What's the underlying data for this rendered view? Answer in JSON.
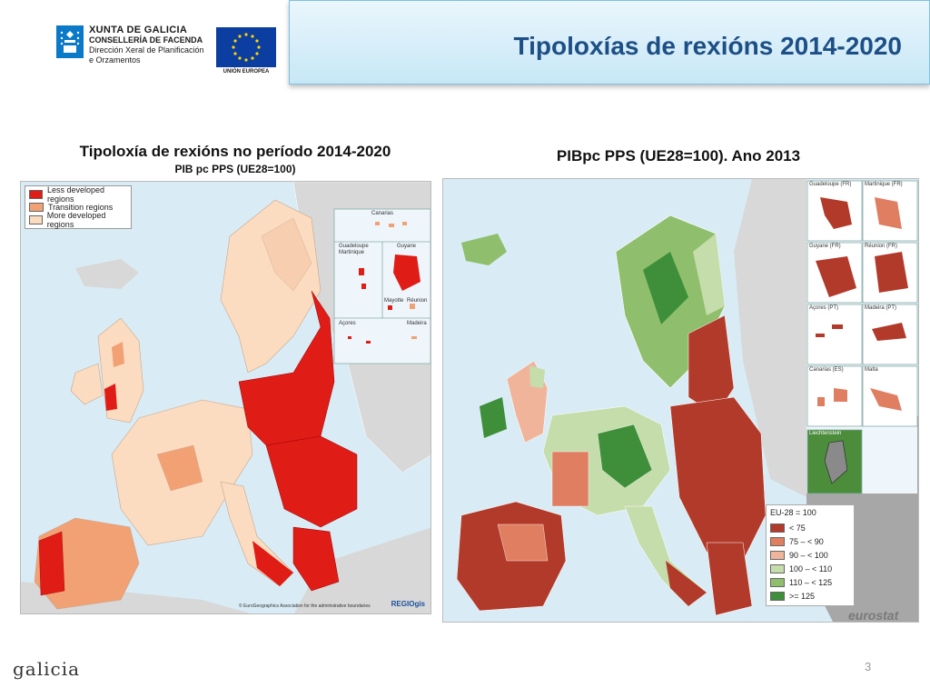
{
  "header": {
    "xunta_line1": "XUNTA DE GALICIA",
    "xunta_line2": "CONSELLERÍA DE FACENDA",
    "xunta_line3": "Dirección Xeral de Planificación",
    "xunta_line4": "e Orzamentos",
    "eu_label": "UNIÓN EUROPEA",
    "title": "Tipoloxías de rexións 2014-2020"
  },
  "left_map": {
    "caption_line1": "Tipoloxía de rexións no período 2014-2020",
    "caption_line2": "PIB pc PPS (UE28=100)",
    "legend": [
      {
        "label": "Less developed regions",
        "color": "#e01c17"
      },
      {
        "label": "Transition regions",
        "color": "#f2a174"
      },
      {
        "label": "More developed regions",
        "color": "#fbdcc0"
      }
    ],
    "insets": [
      "Canarias",
      "Guadeloupe\nMartinique",
      "Guyane",
      "Mayotte",
      "Réunion",
      "Açores",
      "Madeira"
    ],
    "copyright": "© EuroGeographics Association for the administrative boundaries",
    "source_logo": "REGIOgis"
  },
  "right_map": {
    "caption": "PIBpc PPS (UE28=100). Ano 2013",
    "legend_title": "EU-28 = 100",
    "legend": [
      {
        "label": "< 75",
        "color": "#b23a2a"
      },
      {
        "label": "75 – < 90",
        "color": "#e07e62"
      },
      {
        "label": "90 – < 100",
        "color": "#f0b49a"
      },
      {
        "label": "100 – < 110",
        "color": "#c5dcab"
      },
      {
        "label": "110 – < 125",
        "color": "#8fbf6c"
      },
      {
        "label": ">= 125",
        "color": "#3f8f3a"
      }
    ],
    "insets": [
      "Guadeloupe (FR)",
      "Martinique (FR)",
      "Guyane (FR)",
      "Réunion (FR)",
      "Açores (PT)",
      "Madeira (PT)",
      "Canarias (ES)",
      "Malta",
      "Liechtenstein"
    ],
    "source_logo": "eurostat"
  },
  "footer": {
    "logo": "galicia",
    "page_number": "3"
  },
  "colors": {
    "title": "#1d4f86",
    "sea": "#d9ecf6",
    "non_eu": "#d8d8d8"
  }
}
